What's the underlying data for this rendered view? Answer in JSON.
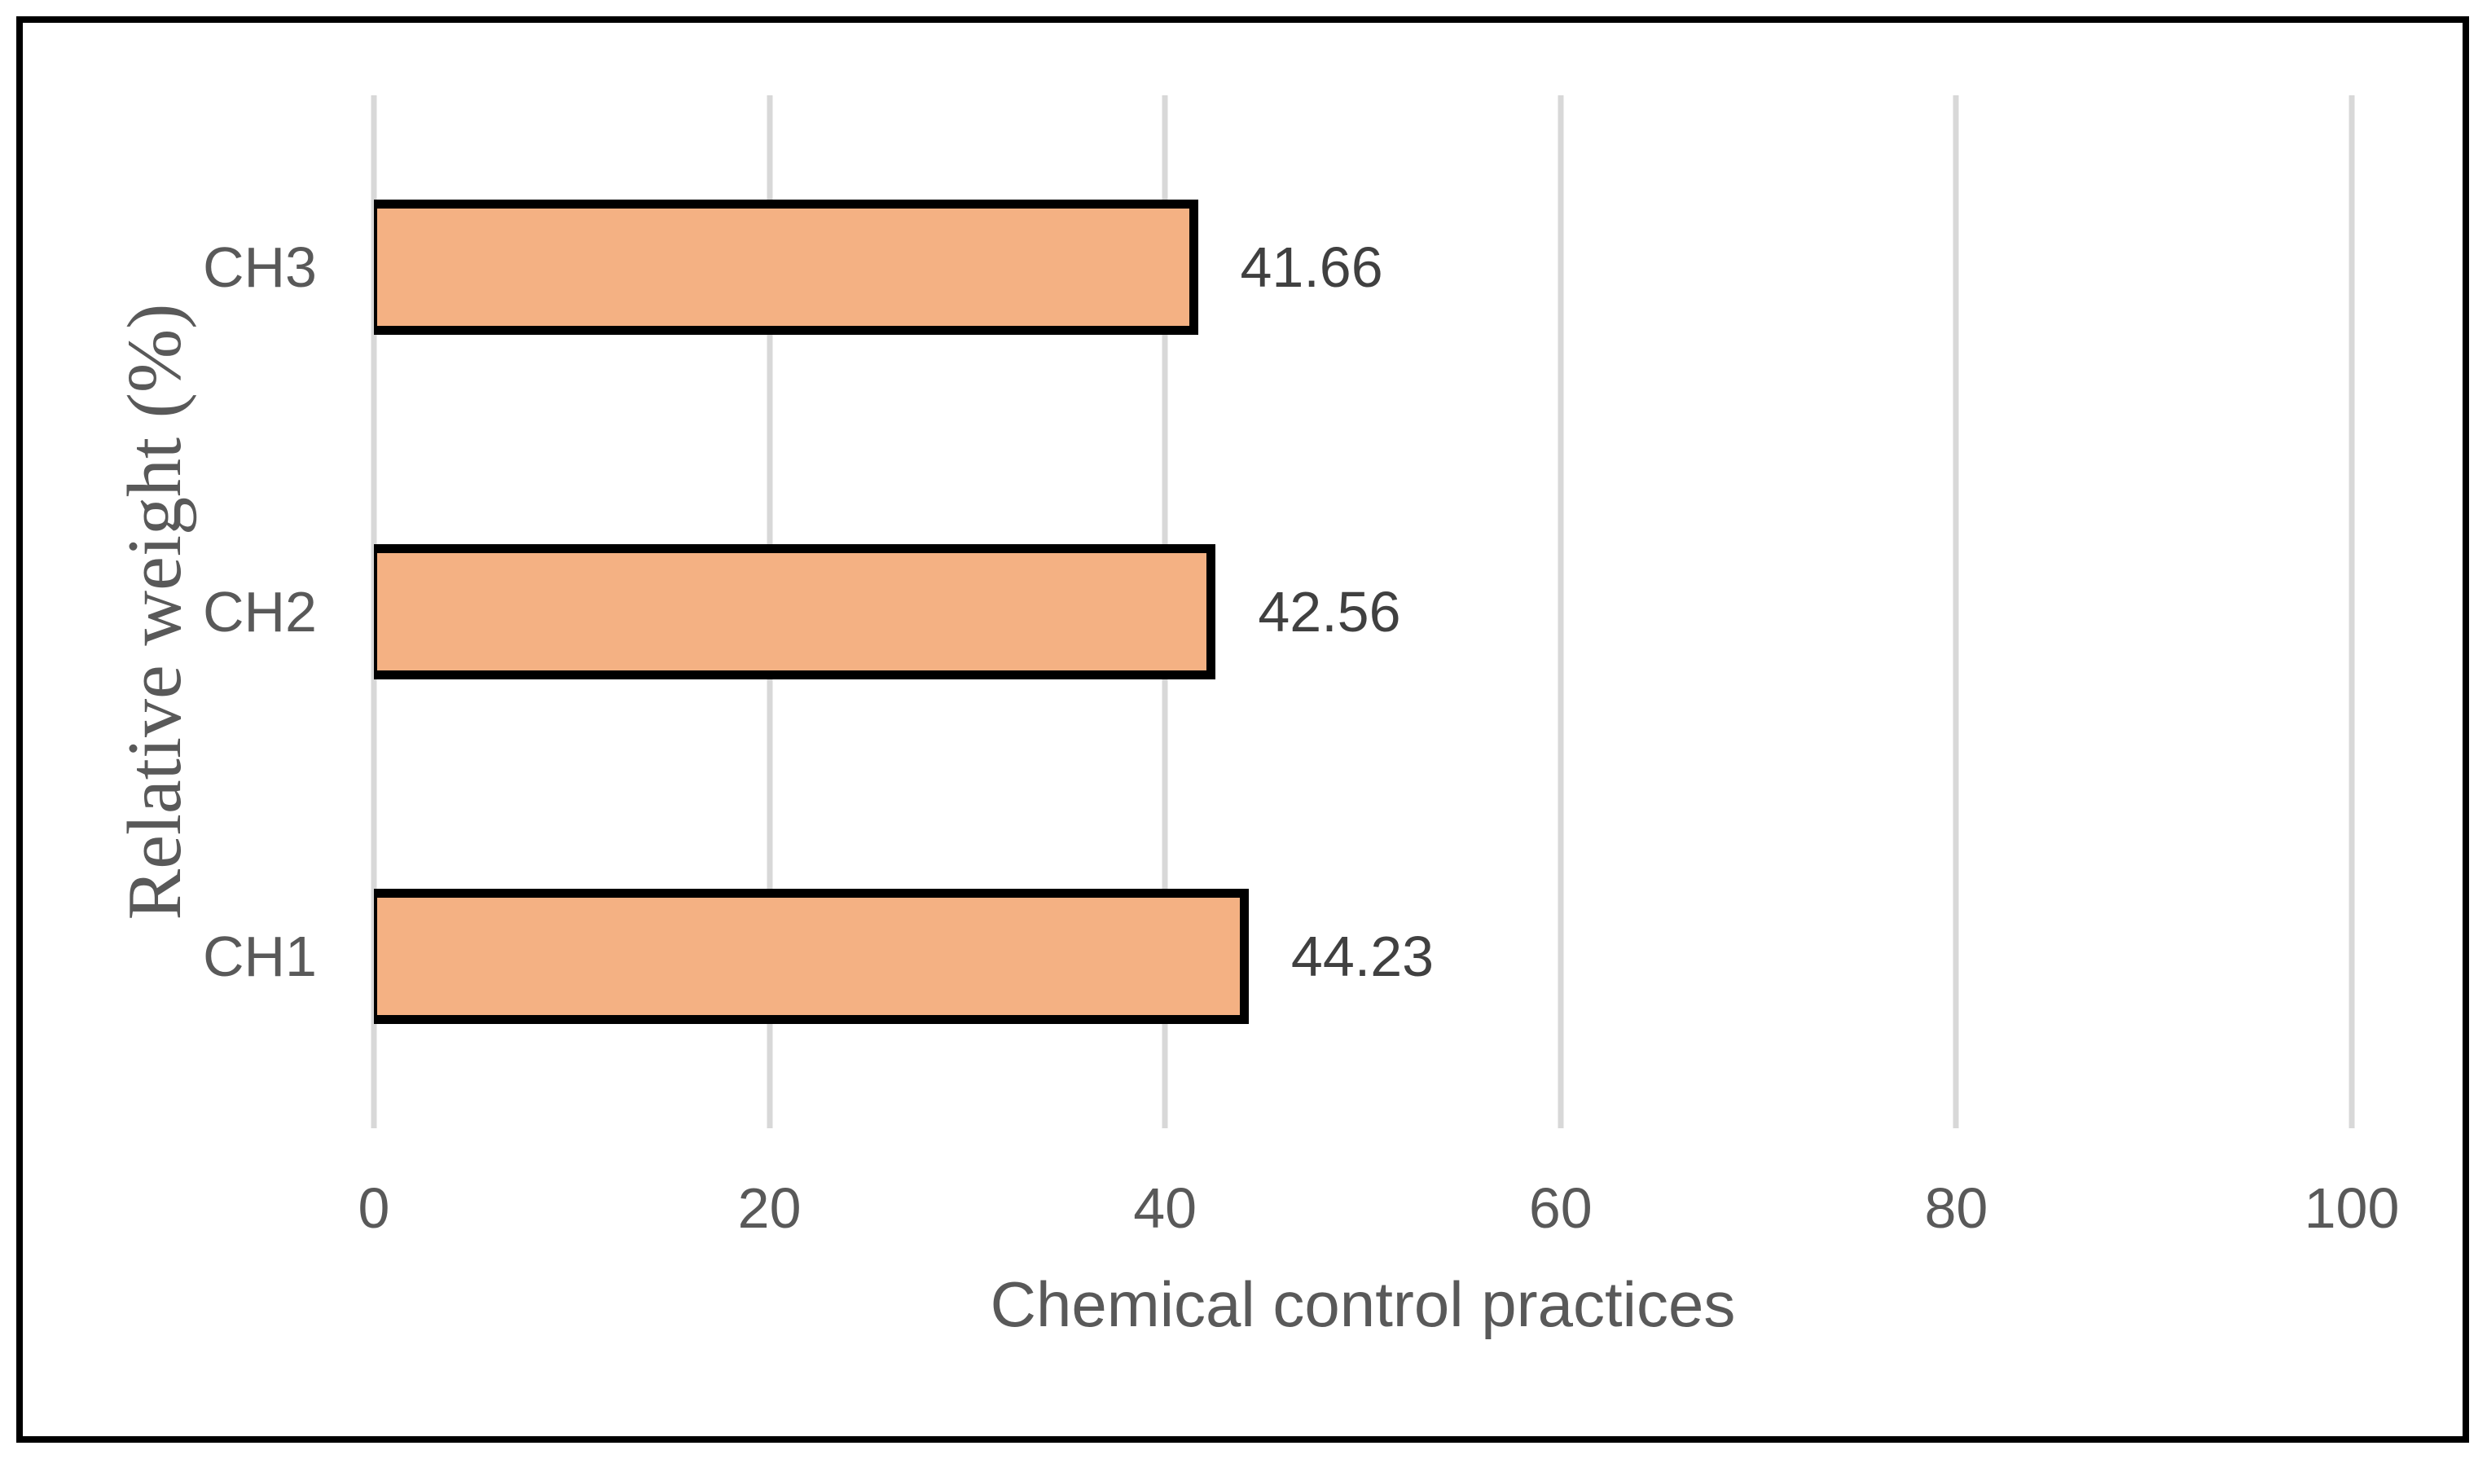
{
  "chart_data": {
    "type": "bar",
    "orientation": "horizontal",
    "categories": [
      "CH3",
      "CH2",
      "CH1"
    ],
    "values": [
      41.66,
      42.56,
      44.23
    ],
    "value_labels": [
      "41.66",
      "42.56",
      "44.23"
    ],
    "xlabel": "Chemical control practices",
    "ylabel": "Relative weight (%)",
    "x_ticks": [
      0,
      20,
      40,
      60,
      80,
      100
    ],
    "x_tick_labels": [
      "0",
      "20",
      "40",
      "60",
      "80",
      "100"
    ],
    "xlim": [
      0,
      100
    ],
    "grid": "vertical-gridlines",
    "legend": "none",
    "colors": {
      "bar_fill": "#F4B183",
      "bar_border": "#000000",
      "gridline": "#D8D8D8",
      "axis_text": "#595959",
      "value_label_text": "#404040",
      "frame_border": "#000000",
      "background": "#FFFFFF"
    }
  }
}
